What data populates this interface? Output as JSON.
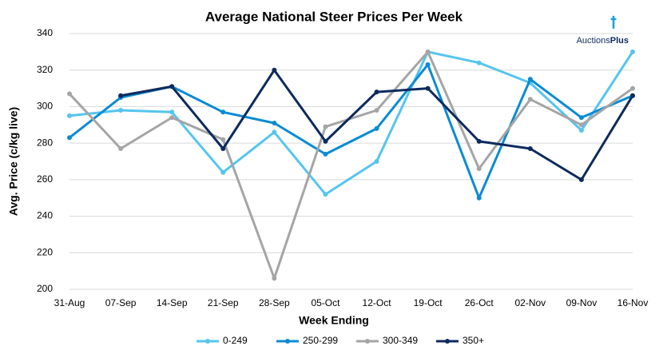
{
  "chart_data": {
    "type": "line",
    "title": "Average National Steer Prices Per Week",
    "x_label": "Week Ending",
    "y_label": "Avg. Price (c/kg live)",
    "logo_text": [
      "Auctions",
      "Plus"
    ],
    "categories": [
      "31-Aug",
      "07-Sep",
      "14-Sep",
      "21-Sep",
      "28-Sep",
      "05-Oct",
      "12-Oct",
      "19-Oct",
      "26-Oct",
      "02-Nov",
      "09-Nov",
      "16-Nov"
    ],
    "series": [
      {
        "name": "0-249",
        "color": "#55c5ee",
        "values": [
          295,
          298,
          297,
          264,
          286,
          252,
          270,
          330,
          324,
          313,
          287,
          330
        ]
      },
      {
        "name": "250-299",
        "color": "#0b8bd3",
        "values": [
          283,
          305,
          311,
          297,
          291,
          274,
          288,
          323,
          250,
          315,
          294,
          306
        ]
      },
      {
        "name": "300-349",
        "color": "#a5a5a5",
        "values": [
          307,
          277,
          294,
          282,
          206,
          289,
          298,
          330,
          266,
          304,
          290,
          310
        ]
      },
      {
        "name": "350+",
        "color": "#0d2a5e",
        "values": [
          null,
          306,
          311,
          277,
          320,
          281,
          308,
          310,
          281,
          277,
          260,
          306
        ]
      }
    ],
    "ylim": [
      200,
      340
    ],
    "yticks": [
      200,
      220,
      240,
      260,
      280,
      300,
      320,
      340
    ],
    "grid": true,
    "legend": "bottom"
  }
}
